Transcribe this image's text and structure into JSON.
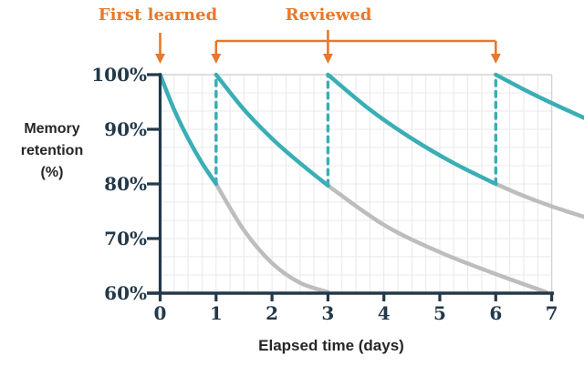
{
  "colors": {
    "teal": "#3aaeb5",
    "gray_curve": "#bdbdbd",
    "orange": "#e8782b",
    "axis_navy": "#233949",
    "grid_line": "#e8e8e8",
    "grid_border": "#d4d4d4",
    "title_text": "#262626",
    "background": "#ffffff"
  },
  "chart_data": {
    "type": "line",
    "title": "",
    "xlabel": "Elapsed time (days)",
    "ylabel": "Memory retention (%)",
    "ylabel_lines": [
      "Memory",
      "retention",
      "(%)"
    ],
    "xlim": [
      0,
      7.6
    ],
    "ylim": [
      60,
      100
    ],
    "x_ticks": [
      0,
      1,
      2,
      3,
      4,
      5,
      6,
      7
    ],
    "x_tick_labels": [
      "0",
      "1",
      "2",
      "3",
      "4",
      "5",
      "6",
      "7"
    ],
    "y_ticks": [
      100,
      90,
      80,
      70,
      60
    ],
    "y_tick_labels": [
      "100%",
      "90%",
      "80%",
      "70%",
      "60%"
    ],
    "grid": {
      "on": true,
      "minor_x_step_days": 0.25,
      "minor_y_step_pct": 3.3333
    },
    "legend": "none",
    "annotations": {
      "first_learned": {
        "label": "First learned",
        "day": 0
      },
      "reviewed": {
        "label": "Reviewed",
        "arrow_days": [
          1,
          3,
          6
        ],
        "bracket_span_days": [
          1,
          6
        ]
      }
    },
    "series": [
      {
        "name": "retention-with-review",
        "color": "#3aaeb5",
        "style": "solid",
        "segments": [
          [
            [
              0,
              100
            ],
            [
              0.25,
              93.6
            ],
            [
              0.5,
              88.3
            ],
            [
              0.75,
              83.8
            ],
            [
              1,
              80
            ]
          ],
          [
            [
              1,
              100
            ],
            [
              1.5,
              93.6
            ],
            [
              2,
              88.3
            ],
            [
              2.5,
              83.8
            ],
            [
              3,
              79.7
            ]
          ],
          [
            [
              3,
              100
            ],
            [
              3.75,
              93.6
            ],
            [
              4.5,
              88.3
            ],
            [
              5.25,
              83.8
            ],
            [
              6,
              80
            ]
          ],
          [
            [
              6,
              100
            ],
            [
              6.5,
              97.3
            ],
            [
              7,
              94.8
            ],
            [
              7.6,
              92
            ]
          ]
        ]
      },
      {
        "name": "forgetting-without-review",
        "color": "#bdbdbd",
        "style": "solid",
        "segments": [
          [
            [
              1,
              80
            ],
            [
              1.5,
              71.5
            ],
            [
              2,
              65.5
            ],
            [
              2.5,
              61.9
            ],
            [
              3,
              60.2
            ]
          ],
          [
            [
              3,
              79.7
            ],
            [
              4,
              72.5
            ],
            [
              5,
              67.5
            ],
            [
              6,
              63.5
            ],
            [
              6.9,
              60.2
            ]
          ],
          [
            [
              6,
              80
            ],
            [
              6.5,
              77.8
            ],
            [
              7,
              75.9
            ],
            [
              7.6,
              73.9
            ]
          ]
        ]
      },
      {
        "name": "review-reset-lines",
        "color": "#3aaeb5",
        "style": "dashed",
        "segments": [
          [
            [
              1,
              80
            ],
            [
              1,
              100
            ]
          ],
          [
            [
              3,
              79.7
            ],
            [
              3,
              100
            ]
          ],
          [
            [
              6,
              80
            ],
            [
              6,
              100
            ]
          ]
        ]
      }
    ]
  }
}
